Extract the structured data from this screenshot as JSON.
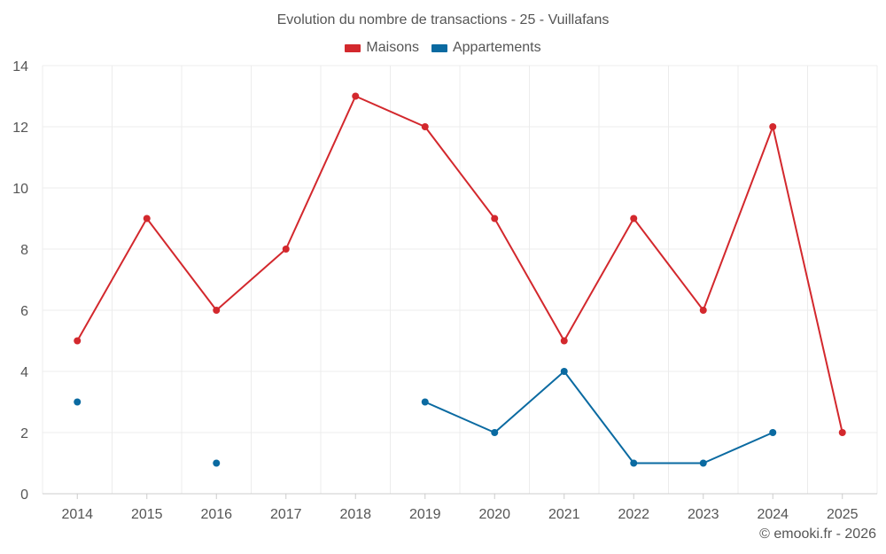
{
  "chart_data": {
    "type": "line",
    "title": "Evolution du nombre de transactions - 25 - Vuillafans",
    "categories": [
      "2014",
      "2015",
      "2016",
      "2017",
      "2018",
      "2019",
      "2020",
      "2021",
      "2022",
      "2023",
      "2024",
      "2025"
    ],
    "ylim": [
      0,
      14
    ],
    "yticks": [
      0,
      2,
      4,
      6,
      8,
      10,
      12,
      14
    ],
    "grid": true,
    "legend_position": "top-center",
    "series": [
      {
        "name": "Maisons",
        "color": "#d3282d",
        "values": [
          5,
          9,
          6,
          8,
          13,
          12,
          9,
          5,
          9,
          6,
          12,
          2
        ]
      },
      {
        "name": "Appartements",
        "color": "#0a6aa1",
        "values": [
          3,
          null,
          1,
          null,
          null,
          3,
          2,
          4,
          1,
          1,
          2,
          null
        ]
      }
    ]
  },
  "footer": {
    "copyright": "© emooki.fr - 2026"
  }
}
